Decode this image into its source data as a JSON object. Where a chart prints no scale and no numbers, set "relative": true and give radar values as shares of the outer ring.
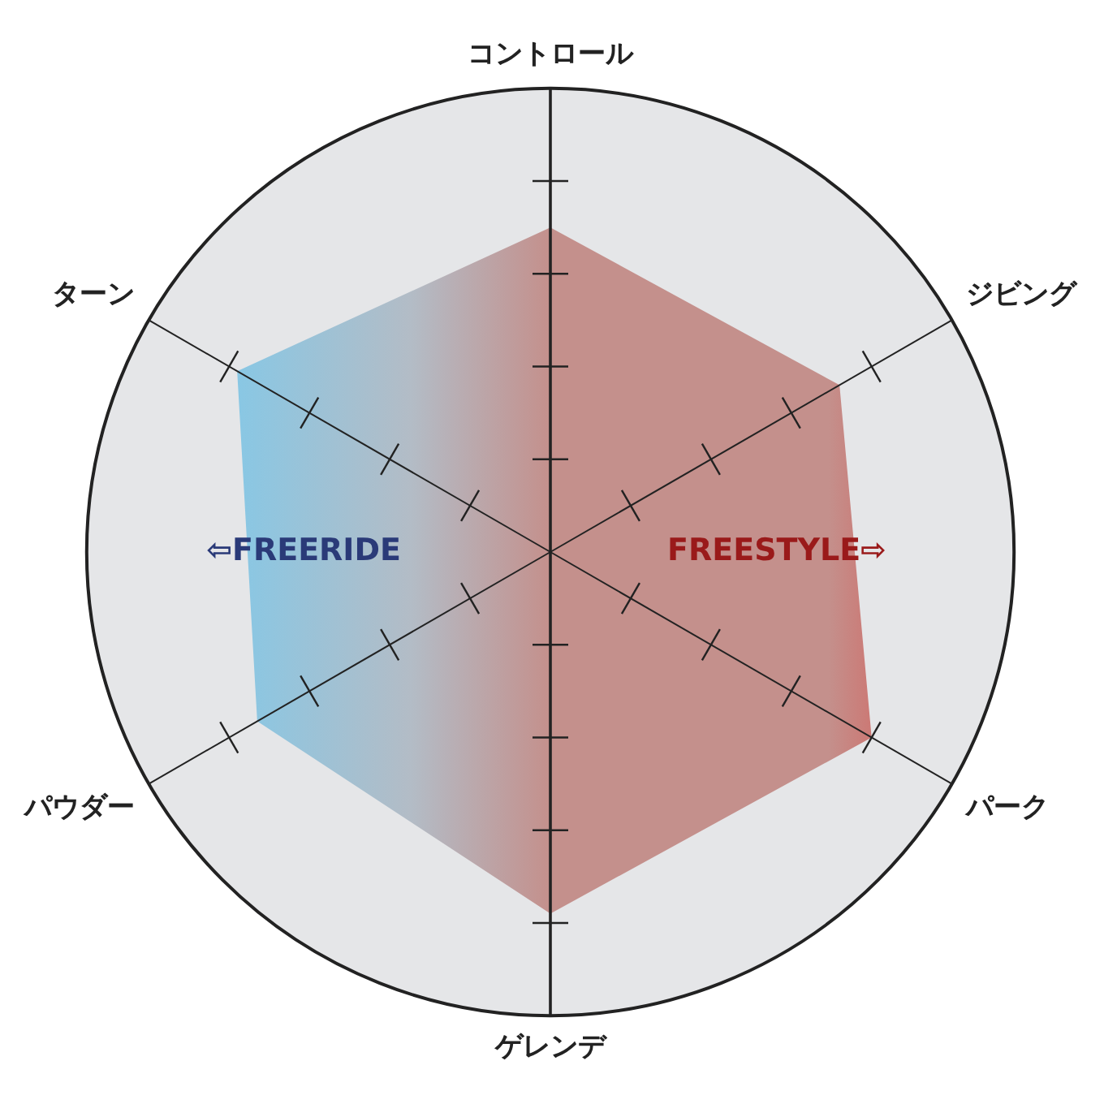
{
  "chart_data": {
    "type": "radar",
    "relative": true,
    "categories": [
      "コントロール",
      "ジビング",
      "パーク",
      "ゲレンデ",
      "パウダー",
      "ターン"
    ],
    "series": [
      {
        "color": "#c4908c",
        "values": [
          0.7,
          0.72,
          0.8,
          0.78,
          0.73,
          0.78
        ]
      }
    ],
    "annotations": [
      "⇦FREERIDE",
      "FREESTYLE⇨"
    ],
    "legend": false,
    "marker": "none"
  }
}
